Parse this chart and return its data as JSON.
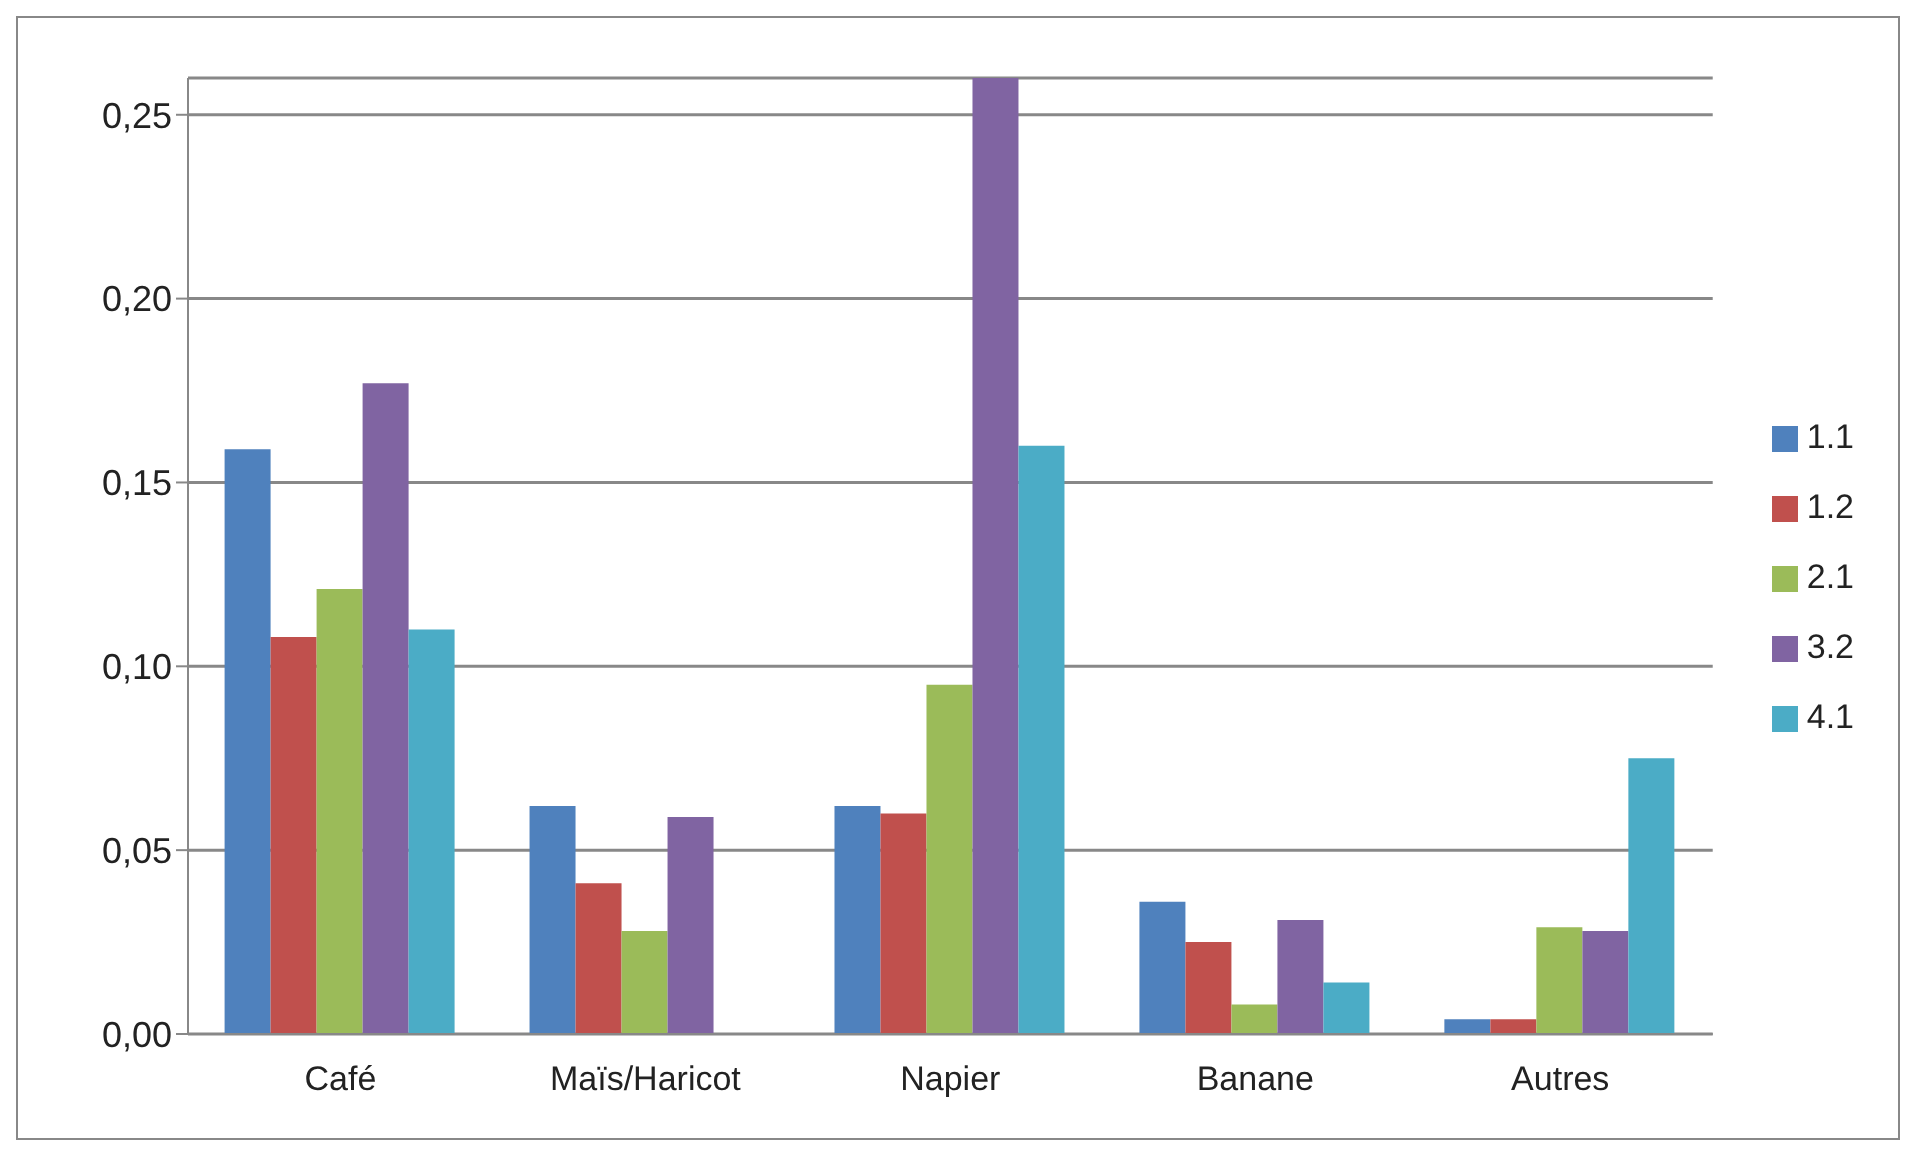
{
  "chart_data": {
    "type": "bar",
    "categories": [
      "Café",
      "Maïs/Haricot",
      "Napier",
      "Banane",
      "Autres"
    ],
    "series": [
      {
        "name": "1.1",
        "color": "#4f81bd",
        "values": [
          0.159,
          0.062,
          0.062,
          0.036,
          0.004
        ]
      },
      {
        "name": "1.2",
        "color": "#c0504d",
        "values": [
          0.108,
          0.041,
          0.06,
          0.025,
          0.004
        ]
      },
      {
        "name": "2.1",
        "color": "#9bbb59",
        "values": [
          0.121,
          0.028,
          0.095,
          0.008,
          0.029
        ]
      },
      {
        "name": "3.2",
        "color": "#8064a2",
        "values": [
          0.177,
          0.059,
          0.26,
          0.031,
          0.028
        ]
      },
      {
        "name": "4.1",
        "color": "#4bacc6",
        "values": [
          0.11,
          null,
          0.16,
          0.014,
          0.075
        ]
      }
    ],
    "ylim": [
      0,
      0.26
    ],
    "yticks": [
      {
        "value": 0,
        "label": "0,00"
      },
      {
        "value": 0.05,
        "label": "0,05"
      },
      {
        "value": 0.1,
        "label": "0,10"
      },
      {
        "value": 0.15,
        "label": "0,15"
      },
      {
        "value": 0.2,
        "label": "0,20"
      },
      {
        "value": 0.25,
        "label": "0,25"
      }
    ],
    "grid": "y",
    "legend": "right"
  }
}
